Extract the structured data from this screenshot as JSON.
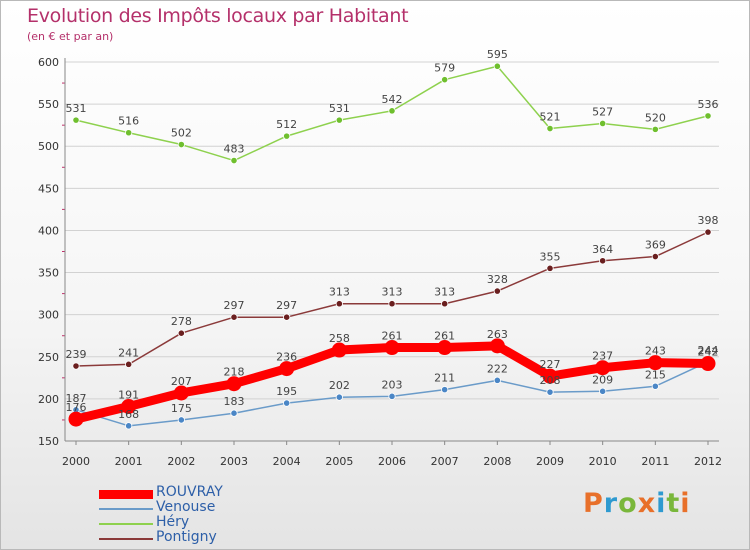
{
  "header": {
    "title": "Evolution des Impôts locaux par Habitant",
    "subtitle": "(en € et par an)"
  },
  "logo": {
    "text": "Proxiti",
    "letter_colors": [
      "#e8702a",
      "#2e9ad0",
      "#79b73b",
      "#e8702a",
      "#2e9ad0",
      "#79b73b",
      "#e8702a"
    ]
  },
  "chart_data": {
    "type": "line",
    "title": "Evolution des Impôts locaux par Habitant",
    "subtitle": "(en € et par an)",
    "xlabel": "",
    "ylabel": "",
    "x": [
      2000,
      2001,
      2002,
      2003,
      2004,
      2005,
      2006,
      2007,
      2008,
      2009,
      2010,
      2011,
      2012
    ],
    "ylim": [
      150,
      600
    ],
    "yticks": [
      150,
      200,
      250,
      300,
      350,
      400,
      450,
      500,
      550,
      600
    ],
    "grid": "horizontal",
    "legend_position": "bottom-left",
    "series": [
      {
        "name": "Héry",
        "color": "#8ed14e",
        "marker_color": "#6fbf2e",
        "values": [
          531,
          516,
          502,
          483,
          512,
          531,
          542,
          579,
          595,
          521,
          527,
          520,
          536
        ]
      },
      {
        "name": "Pontigny",
        "color": "#8b3a3a",
        "marker_color": "#6a1f1f",
        "values": [
          239,
          241,
          278,
          297,
          297,
          313,
          313,
          313,
          328,
          355,
          364,
          369,
          398
        ]
      },
      {
        "name": "Venouse",
        "color": "#6a9bc9",
        "marker_color": "#4a86c6",
        "values": [
          187,
          168,
          175,
          183,
          195,
          202,
          203,
          211,
          222,
          208,
          209,
          215,
          244
        ]
      },
      {
        "name": "ROUVRAY",
        "color": "#ff0000",
        "marker_color": "#ff0000",
        "values": [
          176,
          191,
          207,
          218,
          236,
          258,
          261,
          261,
          263,
          227,
          237,
          243,
          242
        ]
      }
    ],
    "legend_order": [
      "ROUVRAY",
      "Venouse",
      "Héry",
      "Pontigny"
    ]
  }
}
